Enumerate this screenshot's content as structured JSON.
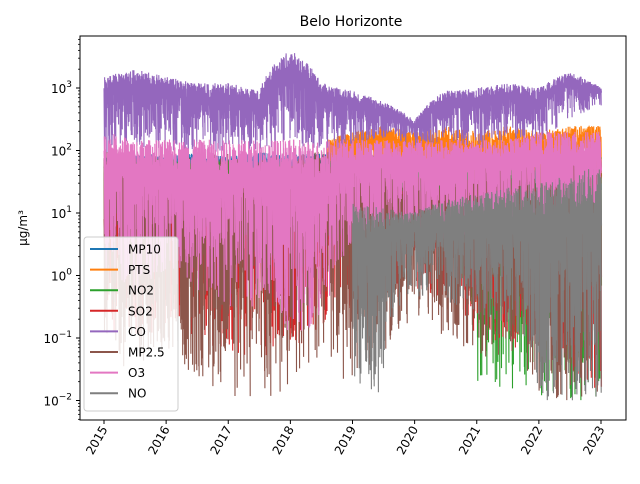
{
  "chart_data": {
    "type": "line",
    "title": "Belo Horizonte",
    "xlabel": "",
    "ylabel": "µg/m³",
    "y_scale": "log",
    "xlim": [
      "2015-01-01",
      "2023-01-01"
    ],
    "ylim": [
      0.01,
      10000
    ],
    "x_ticks": [
      "2015",
      "2016",
      "2017",
      "2018",
      "2019",
      "2020",
      "2021",
      "2022",
      "2023"
    ],
    "y_ticks": [
      {
        "value": 0.01,
        "base": "10",
        "exp": "−2"
      },
      {
        "value": 0.1,
        "base": "10",
        "exp": "−1"
      },
      {
        "value": 1,
        "base": "10",
        "exp": "0"
      },
      {
        "value": 10,
        "base": "10",
        "exp": "1"
      },
      {
        "value": 100,
        "base": "10",
        "exp": "2"
      },
      {
        "value": 1000,
        "base": "10",
        "exp": "3"
      }
    ],
    "legend_position": "lower-left",
    "grid": false,
    "series": [
      {
        "name": "MP10",
        "color": "#1f77b4",
        "band": [
          [
            2015.0,
            15,
            80
          ],
          [
            2015.5,
            18,
            90
          ],
          [
            2016.0,
            14,
            85
          ],
          [
            2016.5,
            18,
            90
          ],
          [
            2017.0,
            15,
            80
          ],
          [
            2017.5,
            20,
            95
          ],
          [
            2018.0,
            15,
            85
          ],
          [
            2018.5,
            18,
            90
          ],
          [
            2019.0,
            12,
            80
          ],
          [
            2019.5,
            15,
            85
          ],
          [
            2020.0,
            10,
            70
          ],
          [
            2020.5,
            15,
            90
          ],
          [
            2021.0,
            5,
            80
          ],
          [
            2021.5,
            15,
            95
          ],
          [
            2022.0,
            10,
            90
          ],
          [
            2022.5,
            15,
            100
          ],
          [
            2023.0,
            10,
            100
          ]
        ]
      },
      {
        "name": "PTS",
        "color": "#ff7f0e",
        "band": [
          [
            2018.6,
            20,
            150
          ],
          [
            2019.0,
            30,
            200
          ],
          [
            2019.5,
            40,
            250
          ],
          [
            2020.0,
            10,
            200
          ],
          [
            2020.5,
            10,
            250
          ],
          [
            2021.0,
            0.2,
            200
          ],
          [
            2021.5,
            5,
            250
          ],
          [
            2022.0,
            20,
            200
          ],
          [
            2022.5,
            15,
            250
          ],
          [
            2023.0,
            10,
            250
          ]
        ]
      },
      {
        "name": "NO2",
        "color": "#2ca02c",
        "band": [
          [
            2015.0,
            5,
            70
          ],
          [
            2016.0,
            5,
            75
          ],
          [
            2017.0,
            5,
            70
          ],
          [
            2018.0,
            5,
            75
          ],
          [
            2019.0,
            3,
            70
          ],
          [
            2020.0,
            3,
            65
          ],
          [
            2021.0,
            0.02,
            60
          ],
          [
            2022.0,
            0.01,
            70
          ],
          [
            2023.0,
            0.01,
            80
          ]
        ]
      },
      {
        "name": "SO2",
        "color": "#d62728",
        "band": [
          [
            2015.0,
            0.1,
            30
          ],
          [
            2016.0,
            0.1,
            25
          ],
          [
            2017.0,
            0.05,
            25
          ],
          [
            2018.0,
            0.05,
            30
          ],
          [
            2019.0,
            0.2,
            30
          ],
          [
            2020.0,
            0.5,
            25
          ],
          [
            2021.0,
            0.1,
            25
          ],
          [
            2022.0,
            0.05,
            30
          ],
          [
            2023.0,
            0.01,
            30
          ]
        ]
      },
      {
        "name": "CO",
        "color": "#9467bd",
        "band": [
          [
            2015.0,
            80,
            1500
          ],
          [
            2015.5,
            100,
            2000
          ],
          [
            2016.0,
            100,
            1500
          ],
          [
            2016.5,
            80,
            1200
          ],
          [
            2017.0,
            100,
            1200
          ],
          [
            2017.5,
            100,
            900
          ],
          [
            2018.0,
            120,
            4000
          ],
          [
            2018.5,
            100,
            1200
          ],
          [
            2019.0,
            120,
            900
          ],
          [
            2019.5,
            150,
            600
          ],
          [
            2020.0,
            100,
            300
          ],
          [
            2020.5,
            150,
            900
          ],
          [
            2021.0,
            100,
            1000
          ],
          [
            2021.5,
            150,
            1200
          ],
          [
            2022.0,
            120,
            1000
          ],
          [
            2022.5,
            300,
            1800
          ],
          [
            2023.0,
            500,
            1000
          ]
        ]
      },
      {
        "name": "MP2.5",
        "color": "#8c564b",
        "band": [
          [
            2015.0,
            0.05,
            100
          ],
          [
            2015.5,
            0.02,
            80
          ],
          [
            2016.0,
            0.05,
            90
          ],
          [
            2016.5,
            0.02,
            90
          ],
          [
            2017.0,
            0.01,
            90
          ],
          [
            2017.5,
            0.01,
            80
          ],
          [
            2018.0,
            0.01,
            90
          ],
          [
            2018.5,
            0.05,
            100
          ],
          [
            2019.0,
            0.01,
            80
          ],
          [
            2019.5,
            0.05,
            60
          ],
          [
            2020.0,
            0.2,
            40
          ],
          [
            2020.5,
            0.1,
            60
          ],
          [
            2021.0,
            0.05,
            60
          ],
          [
            2021.5,
            0.05,
            70
          ],
          [
            2022.0,
            0.01,
            60
          ],
          [
            2022.5,
            0.01,
            80
          ],
          [
            2023.0,
            0.01,
            80
          ]
        ]
      },
      {
        "name": "O3",
        "color": "#e377c2",
        "band": [
          [
            2015.0,
            1,
            200
          ],
          [
            2015.5,
            0.5,
            150
          ],
          [
            2016.0,
            0.5,
            150
          ],
          [
            2016.5,
            0.5,
            150
          ],
          [
            2017.0,
            0.3,
            150
          ],
          [
            2017.5,
            0.3,
            150
          ],
          [
            2018.0,
            0.1,
            150
          ],
          [
            2018.6,
            0.1,
            150
          ],
          [
            2019.0,
            3,
            150
          ],
          [
            2019.5,
            3,
            150
          ],
          [
            2020.0,
            3,
            150
          ],
          [
            2020.5,
            3,
            150
          ],
          [
            2021.0,
            3,
            150
          ],
          [
            2021.5,
            3,
            150
          ],
          [
            2022.0,
            3,
            200
          ],
          [
            2022.5,
            3,
            200
          ],
          [
            2023.0,
            3,
            200
          ]
        ]
      },
      {
        "name": "NO",
        "color": "#7f7f7f",
        "band": [
          [
            2019.0,
            0.01,
            15
          ],
          [
            2019.5,
            0.01,
            12
          ],
          [
            2019.9,
            0.5,
            10
          ],
          [
            2022.0,
            0.01,
            30
          ],
          [
            2022.5,
            0.01,
            40
          ],
          [
            2023.0,
            0.01,
            60
          ]
        ]
      }
    ]
  }
}
